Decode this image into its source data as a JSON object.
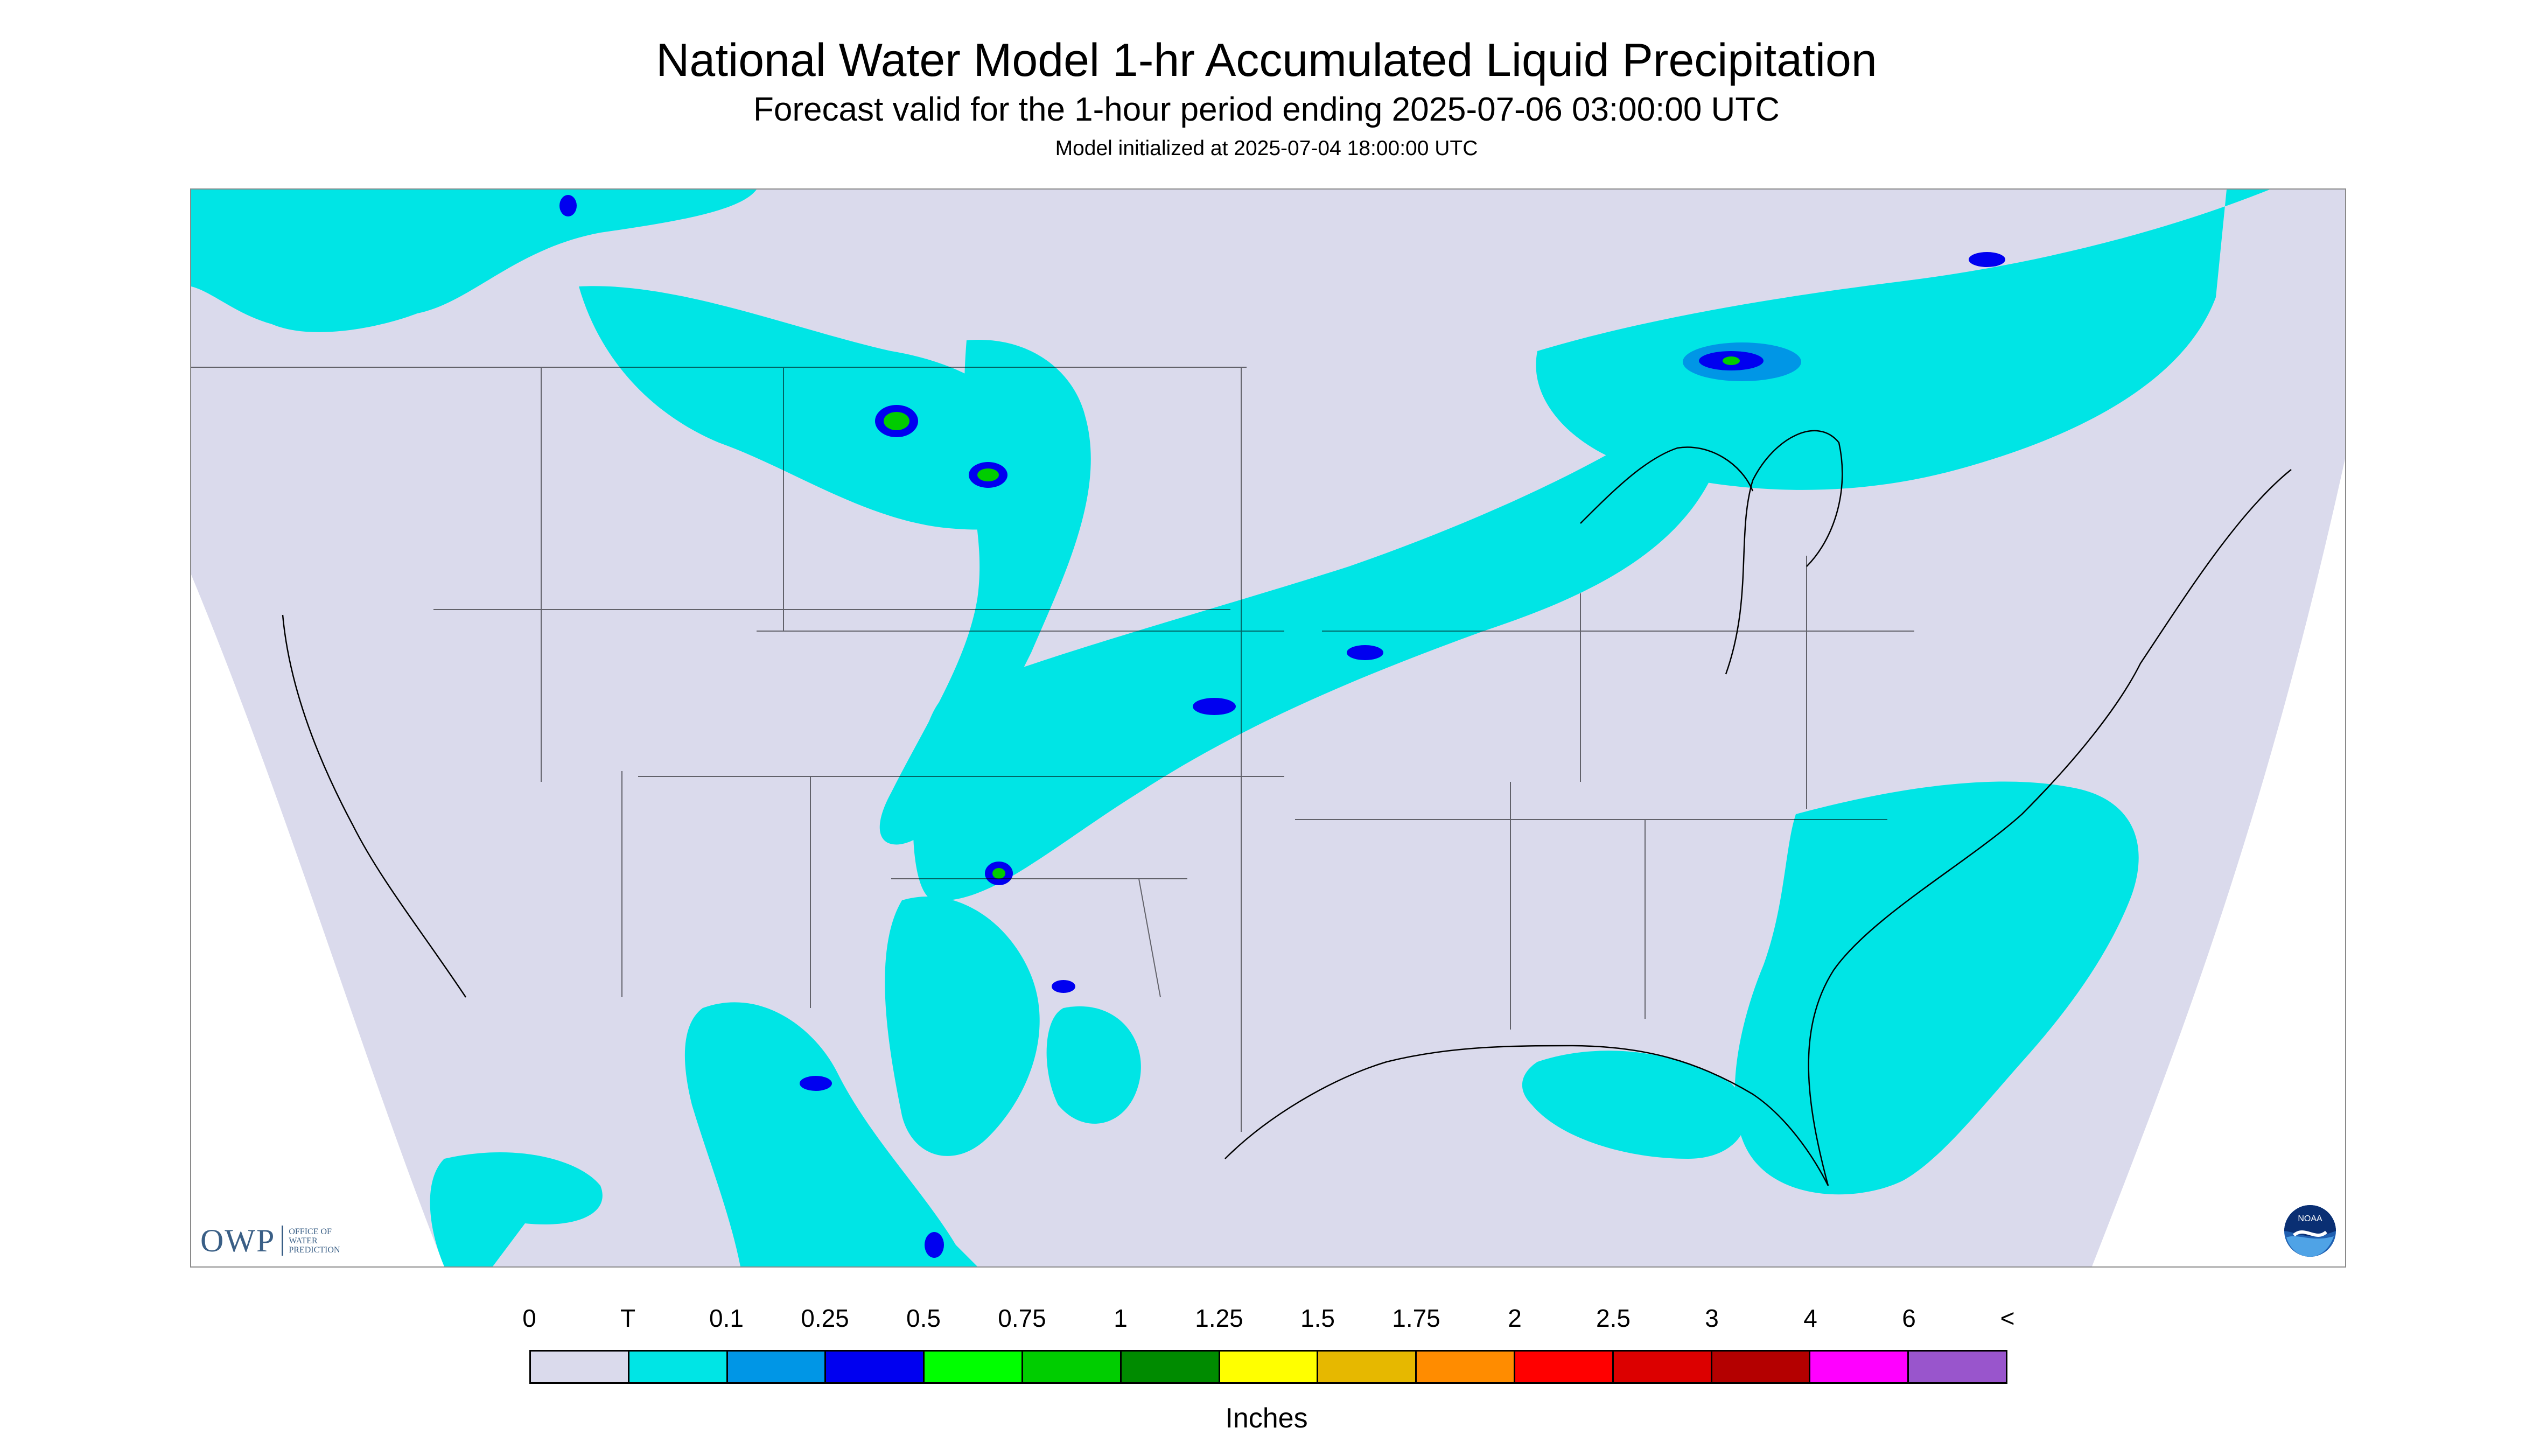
{
  "header": {
    "title": "National Water Model 1-hr Accumulated Liquid Precipitation",
    "subtitle": "Forecast valid for the 1-hour period ending 2025-07-06 03:00:00 UTC",
    "init_line": "Model initialized at 2025-07-04 18:00:00 UTC"
  },
  "map": {
    "background_color": "#ffffff",
    "out_of_domain_color": "#dadaec",
    "boundary_color": "#000000"
  },
  "logos": {
    "owp": {
      "mark": "OWP",
      "line1": "Office of",
      "line2": "Water",
      "line3": "Prediction",
      "color": "#3a5f86"
    },
    "noaa": {
      "text": "NOAA",
      "icon": "noaa-logo-icon"
    }
  },
  "legend": {
    "units": "Inches",
    "tick_labels": [
      "0",
      "T",
      "0.1",
      "0.25",
      "0.5",
      "0.75",
      "1",
      "1.25",
      "1.5",
      "1.75",
      "2",
      "2.5",
      "3",
      "4",
      "6",
      "<"
    ],
    "colors": [
      "#dadaec",
      "#00e5e5",
      "#0096e6",
      "#0000f0",
      "#00ff00",
      "#00cd00",
      "#008b00",
      "#ffff00",
      "#e6b800",
      "#ff8c00",
      "#ff0000",
      "#dc0000",
      "#b40000",
      "#ff00ff",
      "#9955cc"
    ]
  }
}
